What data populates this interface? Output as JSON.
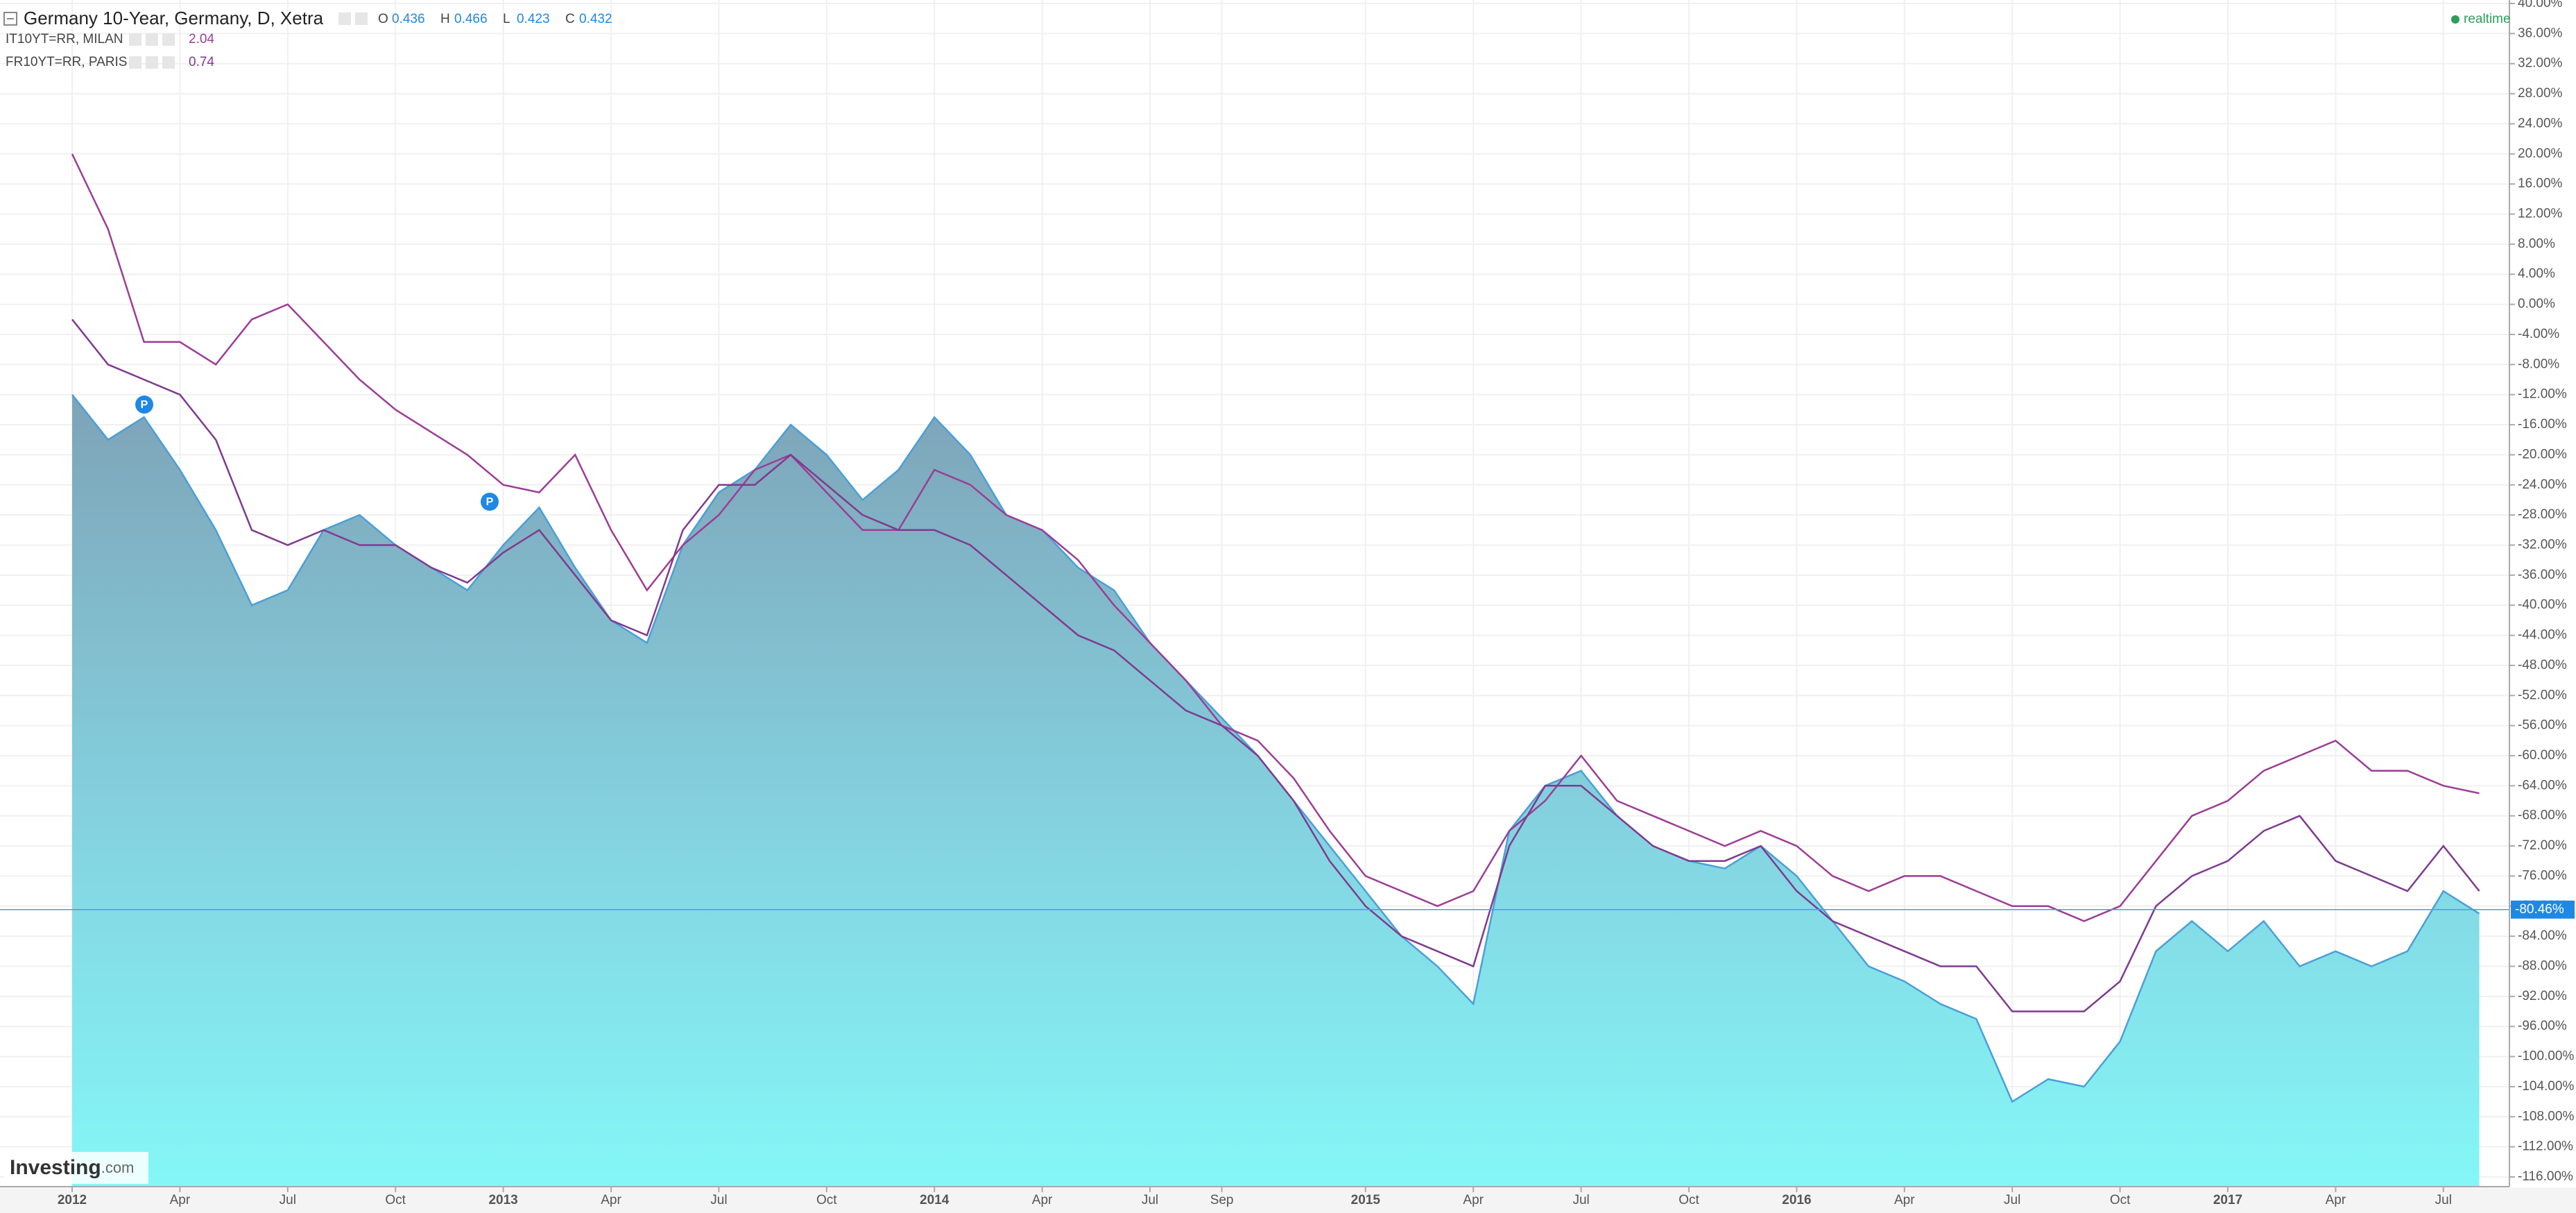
{
  "chart_data": {
    "type": "area-line",
    "status": "realtime",
    "logo": {
      "brand": "Investing",
      "suffix": ".com"
    },
    "ohlc": [
      {
        "label": "O",
        "value": 0.436
      },
      {
        "label": "H",
        "value": 0.466
      },
      {
        "label": "L",
        "value": 0.423
      },
      {
        "label": "C",
        "value": 0.432
      }
    ],
    "annotations": [
      "P",
      "P"
    ],
    "last_value": {
      "value": -80.46,
      "label": "-80.46%"
    },
    "grid": true,
    "x": [
      "2012-01",
      "2012-02",
      "2012-03",
      "2012-04",
      "2012-05",
      "2012-06",
      "2012-07",
      "2012-08",
      "2012-09",
      "2012-10",
      "2012-11",
      "2012-12",
      "2013-01",
      "2013-02",
      "2013-03",
      "2013-04",
      "2013-05",
      "2013-06",
      "2013-07",
      "2013-08",
      "2013-09",
      "2013-10",
      "2013-11",
      "2013-12",
      "2014-01",
      "2014-02",
      "2014-03",
      "2014-04",
      "2014-05",
      "2014-06",
      "2014-07",
      "2014-08",
      "2014-09",
      "2014-10",
      "2014-11",
      "2014-12",
      "2015-01",
      "2015-02",
      "2015-03",
      "2015-04",
      "2015-05",
      "2015-06",
      "2015-07",
      "2015-08",
      "2015-09",
      "2015-10",
      "2015-11",
      "2015-12",
      "2016-01",
      "2016-02",
      "2016-03",
      "2016-04",
      "2016-05",
      "2016-06",
      "2016-07",
      "2016-08",
      "2016-09",
      "2016-10",
      "2016-11",
      "2016-12",
      "2017-01",
      "2017-02",
      "2017-03",
      "2017-04",
      "2017-05",
      "2017-06",
      "2017-07",
      "2017-08"
    ],
    "xticks": [
      {
        "value": "2012-01",
        "label": "2012"
      },
      {
        "value": "2012-04",
        "label": "Apr"
      },
      {
        "value": "2012-07",
        "label": "Jul"
      },
      {
        "value": "2012-10",
        "label": "Oct"
      },
      {
        "value": "2013-01",
        "label": "2013"
      },
      {
        "value": "2013-04",
        "label": "Apr"
      },
      {
        "value": "2013-07",
        "label": "Jul"
      },
      {
        "value": "2013-10",
        "label": "Oct"
      },
      {
        "value": "2014-01",
        "label": "2014"
      },
      {
        "value": "2014-04",
        "label": "Apr"
      },
      {
        "value": "2014-07",
        "label": "Jul"
      },
      {
        "value": "2014-09",
        "label": "Sep"
      },
      {
        "value": "2015-01",
        "label": "2015"
      },
      {
        "value": "2015-04",
        "label": "Apr"
      },
      {
        "value": "2015-07",
        "label": "Jul"
      },
      {
        "value": "2015-10",
        "label": "Oct"
      },
      {
        "value": "2016-01",
        "label": "2016"
      },
      {
        "value": "2016-04",
        "label": "Apr"
      },
      {
        "value": "2016-07",
        "label": "Jul"
      },
      {
        "value": "2016-10",
        "label": "Oct"
      },
      {
        "value": "2017-01",
        "label": "2017"
      },
      {
        "value": "2017-04",
        "label": "Apr"
      },
      {
        "value": "2017-07",
        "label": "Jul"
      }
    ],
    "ylim": [
      -116,
      40
    ],
    "yticks": [
      {
        "value": 40,
        "label": "40.00%"
      },
      {
        "value": 36,
        "label": "36.00%"
      },
      {
        "value": 32,
        "label": "32.00%"
      },
      {
        "value": 28,
        "label": "28.00%"
      },
      {
        "value": 24,
        "label": "24.00%"
      },
      {
        "value": 20,
        "label": "20.00%"
      },
      {
        "value": 16,
        "label": "16.00%"
      },
      {
        "value": 12,
        "label": "12.00%"
      },
      {
        "value": 8,
        "label": "8.00%"
      },
      {
        "value": 4,
        "label": "4.00%"
      },
      {
        "value": 0,
        "label": "0.00%"
      },
      {
        "value": -4,
        "label": "-4.00%"
      },
      {
        "value": -8,
        "label": "-8.00%"
      },
      {
        "value": -12,
        "label": "-12.00%"
      },
      {
        "value": -16,
        "label": "-16.00%"
      },
      {
        "value": -20,
        "label": "-20.00%"
      },
      {
        "value": -24,
        "label": "-24.00%"
      },
      {
        "value": -28,
        "label": "-28.00%"
      },
      {
        "value": -32,
        "label": "-32.00%"
      },
      {
        "value": -36,
        "label": "-36.00%"
      },
      {
        "value": -40,
        "label": "-40.00%"
      },
      {
        "value": -44,
        "label": "-44.00%"
      },
      {
        "value": -48,
        "label": "-48.00%"
      },
      {
        "value": -52,
        "label": "-52.00%"
      },
      {
        "value": -56,
        "label": "-56.00%"
      },
      {
        "value": -60,
        "label": "-60.00%"
      },
      {
        "value": -64,
        "label": "-64.00%"
      },
      {
        "value": -68,
        "label": "-68.00%"
      },
      {
        "value": -72,
        "label": "-72.00%"
      },
      {
        "value": -76,
        "label": "-76.00%"
      },
      {
        "value": -80,
        "label": "-80.00%"
      },
      {
        "value": -84,
        "label": "-84.00%"
      },
      {
        "value": -88,
        "label": "-88.00%"
      },
      {
        "value": -92,
        "label": "-92.00%"
      },
      {
        "value": -96,
        "label": "-96.00%"
      },
      {
        "value": -100,
        "label": "-100.00%"
      },
      {
        "value": -104,
        "label": "-104.00%"
      },
      {
        "value": -108,
        "label": "-108.00%"
      },
      {
        "value": -112,
        "label": "-112.00%"
      },
      {
        "value": -116,
        "label": "-116.00%"
      }
    ],
    "series": [
      {
        "name": "Germany 10-Year, Germany, D, Xetra",
        "kind": "area",
        "color": "#4a9fd8",
        "values": [
          -12,
          -18,
          -15,
          -22,
          -30,
          -40,
          -38,
          -30,
          -28,
          -32,
          -35,
          -38,
          -32,
          -27,
          -35,
          -42,
          -45,
          -32,
          -25,
          -22,
          -16,
          -20,
          -26,
          -22,
          -15,
          -20,
          -28,
          -30,
          -35,
          -38,
          -45,
          -50,
          -55,
          -60,
          -66,
          -72,
          -78,
          -84,
          -88,
          -93,
          -70,
          -64,
          -62,
          -68,
          -72,
          -74,
          -75,
          -72,
          -76,
          -82,
          -88,
          -90,
          -93,
          -95,
          -106,
          -103,
          -104,
          -98,
          -86,
          -82,
          -86,
          -82,
          -88,
          -86,
          -88,
          -86,
          -78,
          -81
        ]
      },
      {
        "name": "IT10YT=RR, MILAN",
        "kind": "line",
        "color": "#9c3d96",
        "last": 2.04,
        "values": [
          20,
          10,
          -5,
          -5,
          -8,
          -2,
          0,
          -5,
          -10,
          -14,
          -17,
          -20,
          -24,
          -25,
          -20,
          -30,
          -38,
          -32,
          -28,
          -22,
          -20,
          -25,
          -30,
          -30,
          -22,
          -24,
          -28,
          -30,
          -34,
          -40,
          -45,
          -50,
          -56,
          -58,
          -63,
          -70,
          -76,
          -78,
          -80,
          -78,
          -70,
          -66,
          -60,
          -66,
          -68,
          -70,
          -72,
          -70,
          -72,
          -76,
          -78,
          -76,
          -76,
          -78,
          -80,
          -80,
          -82,
          -80,
          -74,
          -68,
          -66,
          -62,
          -60,
          -58,
          -62,
          -62,
          -64,
          -65
        ]
      },
      {
        "name": "FR10YT=RR, PARIS",
        "kind": "line",
        "color": "#7f3a8f",
        "last": 0.74,
        "values": [
          -2,
          -8,
          -10,
          -12,
          -18,
          -30,
          -32,
          -30,
          -32,
          -32,
          -35,
          -37,
          -33,
          -30,
          -36,
          -42,
          -44,
          -30,
          -24,
          -24,
          -20,
          -24,
          -28,
          -30,
          -30,
          -32,
          -36,
          -40,
          -44,
          -46,
          -50,
          -54,
          -56,
          -60,
          -66,
          -74,
          -80,
          -84,
          -86,
          -88,
          -72,
          -64,
          -64,
          -68,
          -72,
          -74,
          -74,
          -72,
          -78,
          -82,
          -84,
          -86,
          -88,
          -88,
          -94,
          -94,
          -94,
          -90,
          -80,
          -76,
          -74,
          -70,
          -68,
          -74,
          -76,
          -78,
          -72,
          -78
        ]
      }
    ]
  }
}
